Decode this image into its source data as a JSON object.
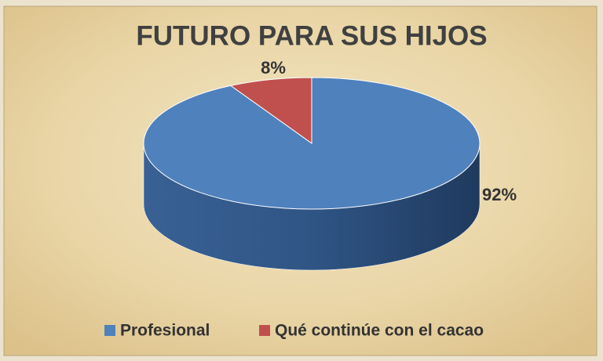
{
  "chart_data": {
    "type": "pie",
    "title": "FUTURO PARA SUS HIJOS",
    "categories": [
      "Profesional",
      "Qué continúe con el cacao"
    ],
    "values": [
      92,
      8
    ],
    "value_labels": [
      "92%",
      "8%"
    ],
    "colors": [
      "#4f81bd",
      "#c0504d"
    ],
    "legend": "bottom"
  }
}
